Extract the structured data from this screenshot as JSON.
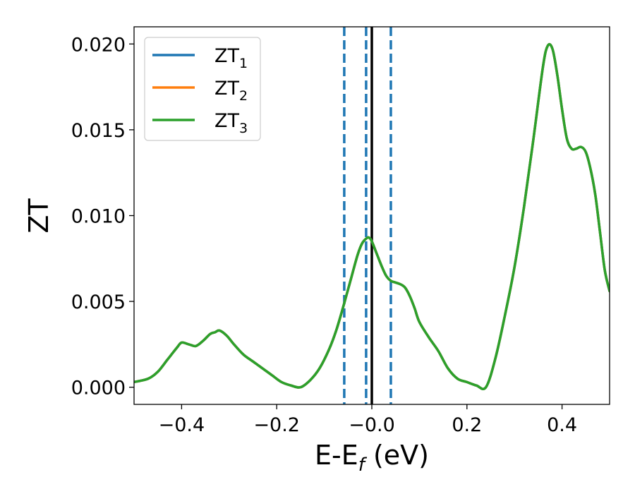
{
  "chart_data": {
    "type": "line",
    "xlabel": "E-E",
    "xlabel_sub": "f",
    "xlabel_unit": " (eV)",
    "ylabel": "ZT",
    "xlim": [
      -0.5,
      0.5
    ],
    "ylim": [
      -0.001,
      0.021
    ],
    "grid": false,
    "legend_position": "upper-left",
    "x_ticks": [
      -0.4,
      -0.2,
      0.0,
      0.2,
      0.4
    ],
    "x_tick_labels": [
      "−0.4",
      "−0.2",
      "−0.0",
      "0.2",
      "0.4"
    ],
    "y_ticks": [
      0.0,
      0.005,
      0.01,
      0.015,
      0.02
    ],
    "y_tick_labels": [
      "0.000",
      "0.005",
      "0.010",
      "0.015",
      "0.020"
    ],
    "vlines": [
      {
        "x": -0.058,
        "style": "dashed",
        "color": "#1f77b4"
      },
      {
        "x": -0.012,
        "style": "dashed",
        "color": "#1f77b4"
      },
      {
        "x": 0.04,
        "style": "dashed",
        "color": "#1f77b4"
      },
      {
        "x": 0.0,
        "style": "solid",
        "color": "#000000"
      }
    ],
    "series": [
      {
        "name": "ZT",
        "name_sub": "1",
        "color": "#1f77b4"
      },
      {
        "name": "ZT",
        "name_sub": "2",
        "color": "#ff7f0e"
      },
      {
        "name": "ZT",
        "name_sub": "3",
        "color": "#2ca02c"
      }
    ],
    "x": [
      -0.5,
      -0.47,
      -0.45,
      -0.43,
      -0.41,
      -0.4,
      -0.385,
      -0.37,
      -0.355,
      -0.34,
      -0.33,
      -0.32,
      -0.305,
      -0.29,
      -0.27,
      -0.25,
      -0.23,
      -0.21,
      -0.19,
      -0.17,
      -0.15,
      -0.13,
      -0.11,
      -0.09,
      -0.075,
      -0.06,
      -0.045,
      -0.03,
      -0.02,
      -0.01,
      -0.005,
      0.0,
      0.01,
      0.02,
      0.03,
      0.04,
      0.05,
      0.06,
      0.07,
      0.08,
      0.09,
      0.1,
      0.12,
      0.14,
      0.16,
      0.18,
      0.2,
      0.22,
      0.24,
      0.26,
      0.28,
      0.3,
      0.32,
      0.34,
      0.36,
      0.37,
      0.38,
      0.39,
      0.4,
      0.41,
      0.42,
      0.43,
      0.44,
      0.45,
      0.46,
      0.47,
      0.48,
      0.49,
      0.5
    ],
    "values": [
      0.0003,
      0.0005,
      0.0009,
      0.0016,
      0.0023,
      0.0026,
      0.0025,
      0.0024,
      0.0027,
      0.0031,
      0.0032,
      0.0033,
      0.003,
      0.0025,
      0.0019,
      0.0015,
      0.0011,
      0.0007,
      0.0003,
      0.0001,
      0.0,
      0.0004,
      0.0011,
      0.0022,
      0.0033,
      0.0047,
      0.0062,
      0.0077,
      0.0084,
      0.0087,
      0.0087,
      0.0085,
      0.0078,
      0.0071,
      0.0065,
      0.0062,
      0.0061,
      0.006,
      0.0058,
      0.0053,
      0.0046,
      0.0038,
      0.0029,
      0.0021,
      0.0011,
      0.0005,
      0.0003,
      0.0001,
      0.0,
      0.0017,
      0.0042,
      0.007,
      0.0105,
      0.0145,
      0.0187,
      0.0199,
      0.0197,
      0.0182,
      0.0162,
      0.0145,
      0.0139,
      0.0139,
      0.014,
      0.0137,
      0.0127,
      0.0112,
      0.009,
      0.0068,
      0.0056
    ]
  }
}
